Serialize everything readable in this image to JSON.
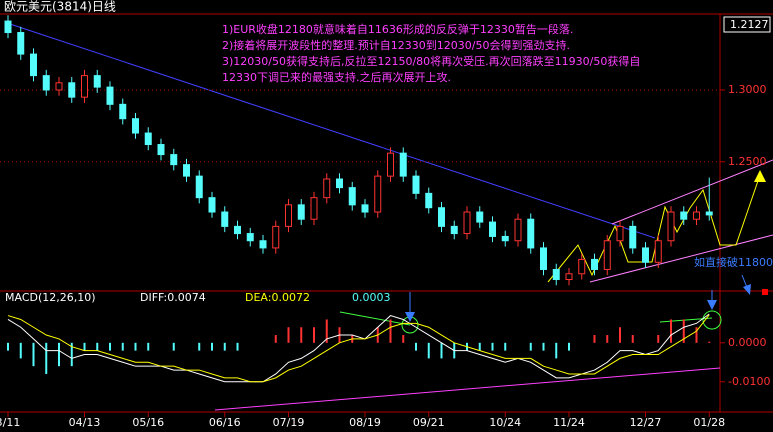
{
  "chart_data": {
    "type": "candlestick",
    "title": "欧元美元(3814)日线",
    "current_price": "1.2127",
    "annotations": [
      "1)EUR收盘12180就意味着自11636形成的反反弹于12330暂告一段落.",
      "2)接着将展开波段性的整理.预计自12330到12030/50会得到强劲支持.",
      "3)12030/50获得支持后,反拉至12150/80将再次受压.再次回落跌至11930/50获得自",
      "12330下调已来的最强支持.之后再次展开上攻."
    ],
    "break_note": "如直接破11800",
    "dates": [
      "3/11",
      null,
      null,
      null,
      null,
      null,
      "04/13",
      null,
      null,
      null,
      null,
      "05/16",
      null,
      null,
      null,
      null,
      null,
      "06/16",
      null,
      null,
      null,
      null,
      "07/19",
      null,
      null,
      null,
      null,
      null,
      "08/19",
      null,
      null,
      null,
      null,
      "09/21",
      null,
      null,
      null,
      null,
      null,
      "10/24",
      null,
      null,
      null,
      null,
      "11/24",
      null,
      null,
      null,
      null,
      null,
      "12/27",
      null,
      null,
      null,
      null,
      "01/28"
    ],
    "ohlc": [
      [
        1.348,
        1.352,
        1.336,
        1.34
      ],
      [
        1.34,
        1.344,
        1.321,
        1.325
      ],
      [
        1.325,
        1.329,
        1.306,
        1.31
      ],
      [
        1.31,
        1.314,
        1.296,
        1.3
      ],
      [
        1.3,
        1.309,
        1.296,
        1.305
      ],
      [
        1.305,
        1.309,
        1.291,
        1.295
      ],
      [
        1.295,
        1.314,
        1.291,
        1.31
      ],
      [
        1.31,
        1.314,
        1.298,
        1.302
      ],
      [
        1.302,
        1.306,
        1.286,
        1.29
      ],
      [
        1.29,
        1.294,
        1.276,
        1.28
      ],
      [
        1.28,
        1.284,
        1.266,
        1.27
      ],
      [
        1.27,
        1.274,
        1.258,
        1.262
      ],
      [
        1.262,
        1.266,
        1.251,
        1.255
      ],
      [
        1.255,
        1.259,
        1.244,
        1.248
      ],
      [
        1.248,
        1.252,
        1.236,
        1.24
      ],
      [
        1.24,
        1.244,
        1.221,
        1.225
      ],
      [
        1.225,
        1.229,
        1.211,
        1.215
      ],
      [
        1.215,
        1.219,
        1.201,
        1.205
      ],
      [
        1.205,
        1.209,
        1.196,
        1.2
      ],
      [
        1.2,
        1.204,
        1.191,
        1.195
      ],
      [
        1.195,
        1.199,
        1.186,
        1.19
      ],
      [
        1.19,
        1.209,
        1.186,
        1.205
      ],
      [
        1.205,
        1.224,
        1.201,
        1.22
      ],
      [
        1.22,
        1.224,
        1.206,
        1.21
      ],
      [
        1.21,
        1.229,
        1.206,
        1.225
      ],
      [
        1.225,
        1.242,
        1.221,
        1.238
      ],
      [
        1.238,
        1.242,
        1.228,
        1.232
      ],
      [
        1.232,
        1.236,
        1.216,
        1.22
      ],
      [
        1.22,
        1.224,
        1.211,
        1.215
      ],
      [
        1.215,
        1.244,
        1.211,
        1.24
      ],
      [
        1.24,
        1.26,
        1.236,
        1.256
      ],
      [
        1.256,
        1.26,
        1.236,
        1.24
      ],
      [
        1.24,
        1.244,
        1.224,
        1.228
      ],
      [
        1.228,
        1.232,
        1.214,
        1.218
      ],
      [
        1.218,
        1.222,
        1.201,
        1.205
      ],
      [
        1.205,
        1.209,
        1.196,
        1.2
      ],
      [
        1.2,
        1.219,
        1.196,
        1.215
      ],
      [
        1.215,
        1.219,
        1.204,
        1.208
      ],
      [
        1.208,
        1.212,
        1.194,
        1.198
      ],
      [
        1.198,
        1.202,
        1.191,
        1.195
      ],
      [
        1.195,
        1.214,
        1.191,
        1.21
      ],
      [
        1.21,
        1.214,
        1.186,
        1.19
      ],
      [
        1.19,
        1.194,
        1.171,
        1.175
      ],
      [
        1.175,
        1.179,
        1.164,
        1.168
      ],
      [
        1.168,
        1.176,
        1.164,
        1.172
      ],
      [
        1.172,
        1.186,
        1.168,
        1.182
      ],
      [
        1.182,
        1.186,
        1.171,
        1.175
      ],
      [
        1.175,
        1.199,
        1.171,
        1.195
      ],
      [
        1.195,
        1.209,
        1.191,
        1.205
      ],
      [
        1.205,
        1.209,
        1.186,
        1.19
      ],
      [
        1.19,
        1.194,
        1.176,
        1.18
      ],
      [
        1.18,
        1.199,
        1.176,
        1.195
      ],
      [
        1.195,
        1.219,
        1.191,
        1.215
      ],
      [
        1.215,
        1.219,
        1.206,
        1.21
      ],
      [
        1.21,
        1.219,
        1.206,
        1.215
      ],
      [
        1.215,
        1.239,
        1.209,
        1.213
      ]
    ],
    "up_color": "#ff3232",
    "down_color": "#54fcfc",
    "ylim": [
      1.16,
      1.355
    ],
    "yticks": [
      {
        "value": 1.3,
        "label": "1.3000"
      },
      {
        "value": 1.25,
        "label": "1.2500"
      }
    ],
    "macd": {
      "label": "MACD(12,26,10)",
      "diff_label": "DIFF:0.0074",
      "dea_label": "DEA:0.0072",
      "macd_label": "0.0003",
      "ylim": [
        -0.017,
        0.011
      ],
      "yticks": [
        {
          "value": 0,
          "label": "0.0000"
        },
        {
          "value": -0.01,
          "label": "-0.0100"
        }
      ],
      "diff": [
        0.006,
        0.004,
        0.001,
        -0.002,
        -0.002,
        -0.004,
        -0.003,
        -0.003,
        -0.004,
        -0.005,
        -0.006,
        -0.006,
        -0.006,
        -0.007,
        -0.007,
        -0.008,
        -0.009,
        -0.01,
        -0.01,
        -0.01,
        -0.01,
        -0.008,
        -0.005,
        -0.004,
        -0.002,
        0.001,
        0.002,
        0.002,
        0.001,
        0.004,
        0.007,
        0.006,
        0.004,
        0.002,
        0.0,
        -0.002,
        -0.002,
        -0.003,
        -0.004,
        -0.005,
        -0.004,
        -0.005,
        -0.007,
        -0.009,
        -0.009,
        -0.008,
        -0.007,
        -0.005,
        -0.002,
        -0.002,
        -0.003,
        -0.002,
        0.002,
        0.004,
        0.005,
        0.0074
      ],
      "dea": [
        0.007,
        0.006,
        0.004,
        0.002,
        0.001,
        -0.001,
        -0.002,
        -0.002,
        -0.003,
        -0.004,
        -0.005,
        -0.005,
        -0.006,
        -0.006,
        -0.007,
        -0.007,
        -0.008,
        -0.009,
        -0.009,
        -0.01,
        -0.01,
        -0.009,
        -0.007,
        -0.006,
        -0.004,
        -0.002,
        0.0,
        0.001,
        0.001,
        0.002,
        0.004,
        0.005,
        0.005,
        0.004,
        0.002,
        0.0,
        -0.001,
        -0.002,
        -0.003,
        -0.004,
        -0.004,
        -0.004,
        -0.006,
        -0.007,
        -0.008,
        -0.008,
        -0.008,
        -0.006,
        -0.004,
        -0.003,
        -0.003,
        -0.003,
        -0.001,
        0.001,
        0.003,
        0.0072
      ],
      "hist": [
        -0.002,
        -0.004,
        -0.006,
        -0.008,
        -0.006,
        -0.006,
        -0.002,
        -0.002,
        -0.002,
        -0.002,
        -0.002,
        -0.002,
        0.0,
        -0.002,
        0.0,
        -0.002,
        -0.002,
        -0.002,
        -0.002,
        0.0,
        0.0,
        0.002,
        0.004,
        0.004,
        0.004,
        0.006,
        0.004,
        0.002,
        0.0,
        0.004,
        0.006,
        0.002,
        -0.002,
        -0.004,
        -0.004,
        -0.004,
        -0.002,
        -0.002,
        -0.002,
        -0.002,
        0.0,
        -0.002,
        -0.002,
        -0.004,
        -0.002,
        0.0,
        0.002,
        0.002,
        0.004,
        0.002,
        0.0,
        0.002,
        0.006,
        0.006,
        0.004,
        0.0003
      ],
      "diff_color": "#ffffff",
      "dea_color": "#ffff00"
    }
  }
}
